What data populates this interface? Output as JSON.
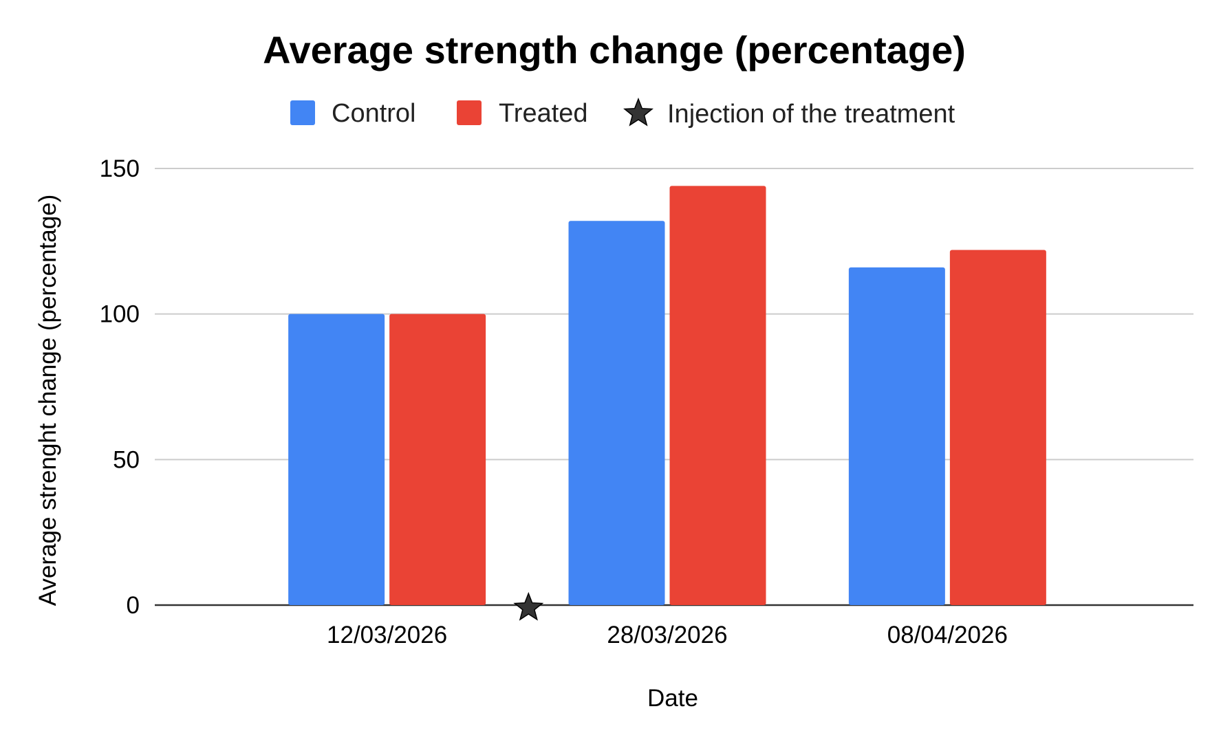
{
  "chart_data": {
    "type": "bar",
    "title": "Average strength change (percentage)",
    "xlabel": "Date",
    "ylabel": "Average strenght change (percentage)",
    "categories": [
      "12/03/2026",
      "28/03/2026",
      "08/04/2026"
    ],
    "series": [
      {
        "name": "Control",
        "color": "#4285F4",
        "values": [
          100,
          132,
          116
        ]
      },
      {
        "name": "Treated",
        "color": "#EA4335",
        "values": [
          100,
          144,
          122
        ]
      }
    ],
    "markers": [
      {
        "name": "Injection of the treatment",
        "symbol": "star",
        "color": "#333333",
        "between": [
          "12/03/2026",
          "28/03/2026"
        ],
        "y": 0
      }
    ],
    "yticks": [
      0,
      50,
      100,
      150
    ],
    "ylim": [
      0,
      150
    ],
    "grid": true,
    "legend_position": "top"
  }
}
